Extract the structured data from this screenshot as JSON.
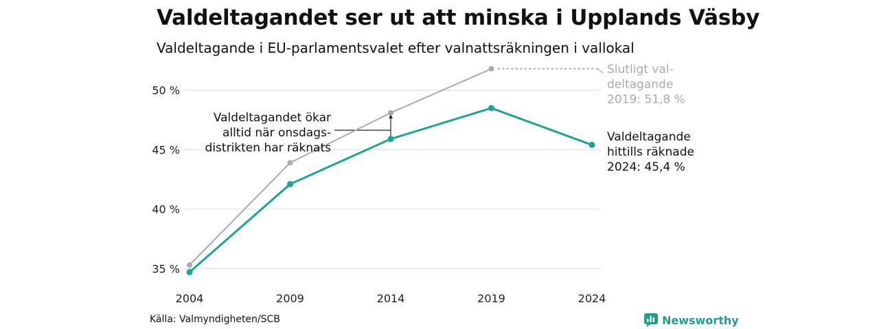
{
  "title": "Valdeltagandet ser ut att minska i Upplands Väsby",
  "subtitle": "Valdeltagande i EU-parlamentsvalet efter valnattsräkningen i vallokal",
  "source": "Källa: Valmyndigheten/SCB",
  "brand": "Newsworthy",
  "chart_data": {
    "type": "line",
    "title": "Valdeltagandet ser ut att minska i Upplands Väsby",
    "subtitle": "Valdeltagande i EU-parlamentsvalet efter valnattsräkningen i vallokal",
    "x": [
      "2004",
      "2009",
      "2014",
      "2019",
      "2024"
    ],
    "series": [
      {
        "name": "Slutligt valdeltagande",
        "color": "#aaaaaa",
        "values": [
          35.3,
          43.9,
          48.1,
          51.8,
          null
        ]
      },
      {
        "name": "Valdeltagande efter valnattsräkningen",
        "color": "#1aa396",
        "values": [
          34.7,
          42.1,
          45.9,
          48.5,
          45.4
        ]
      }
    ],
    "ylim": [
      34.3,
      52.4
    ],
    "yticks": [
      35,
      40,
      45,
      50
    ],
    "ytick_labels": [
      "35 %",
      "40 %",
      "45 %",
      "50 %"
    ],
    "grid": true,
    "annotations": {
      "final_2019": [
        "Slutligt val-",
        "deltagande",
        "2019: 51,8 %"
      ],
      "current_2024": [
        "Valdeltagande",
        "hittills räknade",
        "2024: 45,4 %"
      ],
      "wednesday_note": [
        "Valdeltagandet ökar",
        "alltid när onsdags-",
        "distrikten har räknats"
      ]
    }
  }
}
